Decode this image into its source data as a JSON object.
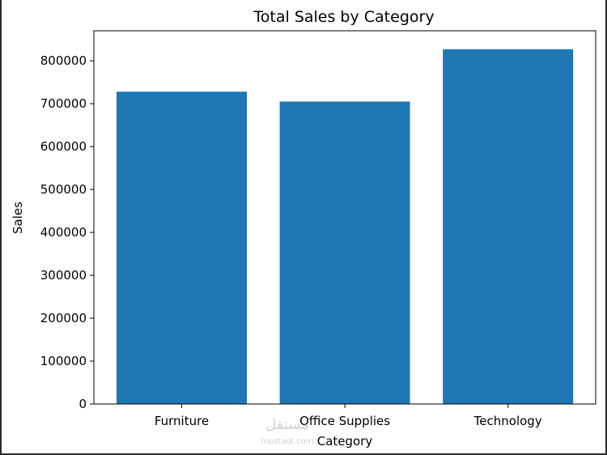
{
  "chart_data": {
    "type": "bar",
    "title": "Total Sales by Category",
    "xlabel": "Category",
    "ylabel": "Sales",
    "categories": [
      "Furniture",
      "Office Supplies",
      "Technology"
    ],
    "values": [
      728000,
      705000,
      827000
    ],
    "ylim": [
      0,
      870000
    ],
    "yticks": [
      0,
      100000,
      200000,
      300000,
      400000,
      500000,
      600000,
      700000,
      800000
    ],
    "ytick_labels": [
      "0",
      "100000",
      "200000",
      "300000",
      "400000",
      "500000",
      "600000",
      "700000",
      "800000"
    ],
    "bar_color": "#1f77b4",
    "grid": false,
    "legend": "none"
  },
  "watermark": {
    "text_top": "مستقل",
    "text_bottom": "mostaql.com"
  }
}
